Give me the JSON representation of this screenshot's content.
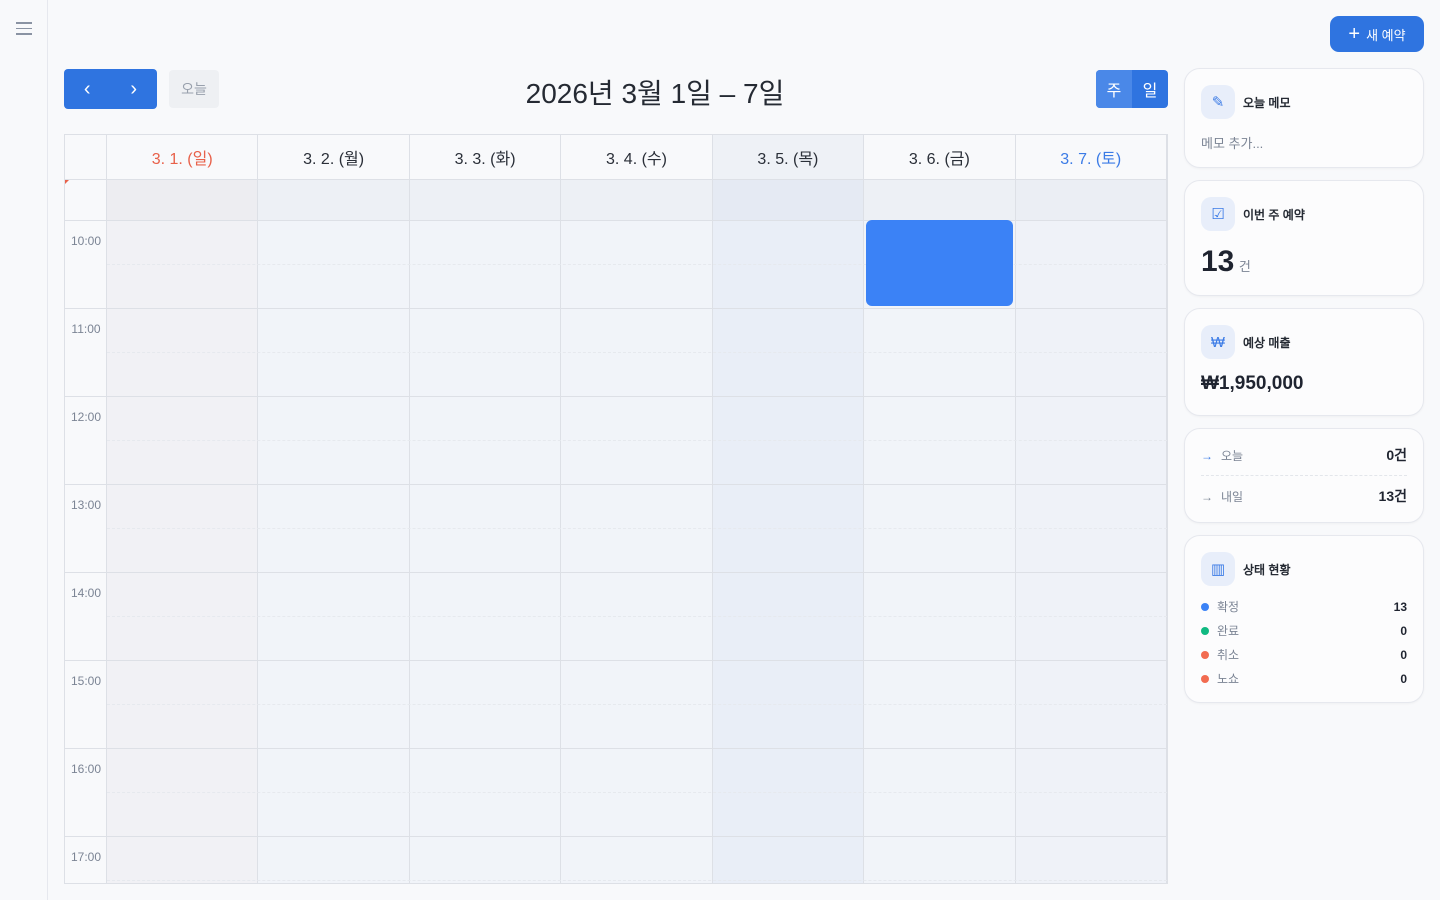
{
  "header": {
    "new_booking": "새 예약",
    "plus_icon": "+"
  },
  "toolbar": {
    "prev": "‹",
    "next": "›",
    "today": "오늘",
    "title": "2026년 3월 1일 – 7일",
    "view_week": "주",
    "view_day": "일",
    "active_view": "주"
  },
  "calendar": {
    "days": [
      {
        "label": "3. 1. (일)",
        "color": "#e8614a",
        "bg": "#f1f1f5"
      },
      {
        "label": "3. 2. (월)",
        "color": "#2a2f38",
        "bg": "#f1f4f9"
      },
      {
        "label": "3. 3. (화)",
        "color": "#2a2f38",
        "bg": "#f1f4f9"
      },
      {
        "label": "3. 4. (수)",
        "color": "#2a2f38",
        "bg": "#f1f4f9"
      },
      {
        "label": "3. 5. (목)",
        "color": "#2a2f38",
        "bg": "#e9eef7",
        "header_bg": "#eef1f6"
      },
      {
        "label": "3. 6. (금)",
        "color": "#2a2f38",
        "bg": "#f1f4f9"
      },
      {
        "label": "3. 7. (토)",
        "color": "#3b7be6",
        "bg": "#eff2f8"
      }
    ],
    "hours": [
      "10:00",
      "11:00",
      "12:00",
      "13:00",
      "14:00",
      "15:00",
      "16:00",
      "17:00"
    ],
    "events": [
      {
        "day": 5,
        "start": "10:00",
        "end": "11:00",
        "color": "#3b82f6"
      }
    ]
  },
  "memo": {
    "title": "오늘 메모",
    "placeholder": "메모 추가..."
  },
  "weekly": {
    "title": "이번 주 예약",
    "count": "13",
    "unit": "건"
  },
  "revenue": {
    "title": "예상 매출",
    "amount": "₩1,950,000"
  },
  "summary": [
    {
      "label": "오늘",
      "value": "0건",
      "arrow_color": "#3b7be6"
    },
    {
      "label": "내일",
      "value": "13건",
      "arrow_color": "#7b8494"
    }
  ],
  "status": {
    "title": "상태 현황",
    "items": [
      {
        "label": "확정",
        "value": "13",
        "color": "#3b82f6"
      },
      {
        "label": "완료",
        "value": "0",
        "color": "#10b981"
      },
      {
        "label": "취소",
        "value": "0",
        "color": "#f26b50"
      },
      {
        "label": "노쇼",
        "value": "0",
        "color": "#f26b50"
      }
    ]
  }
}
